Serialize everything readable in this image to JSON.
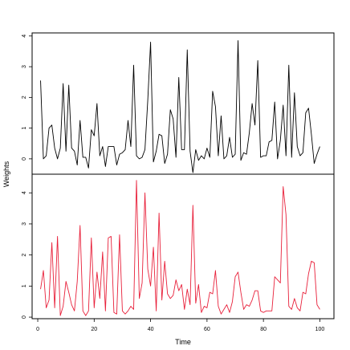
{
  "chart_data": {
    "type": "line",
    "xlabel": "Time",
    "ylabel": "Weights",
    "xlim": [
      -2,
      105
    ],
    "x_ticks": [
      0,
      20,
      40,
      60,
      80,
      100
    ],
    "x_tick_labels": [
      "0",
      "20",
      "40",
      "60",
      "80",
      "100"
    ],
    "grid": false,
    "legend": "none",
    "x": [
      1,
      2,
      3,
      4,
      5,
      6,
      7,
      8,
      9,
      10,
      11,
      12,
      13,
      14,
      15,
      16,
      17,
      18,
      19,
      20,
      21,
      22,
      23,
      24,
      25,
      26,
      27,
      28,
      29,
      30,
      31,
      32,
      33,
      34,
      35,
      36,
      37,
      38,
      39,
      40,
      41,
      42,
      43,
      44,
      45,
      46,
      47,
      48,
      49,
      50,
      51,
      52,
      53,
      54,
      55,
      56,
      57,
      58,
      59,
      60,
      61,
      62,
      63,
      64,
      65,
      66,
      67,
      68,
      69,
      70,
      71,
      72,
      73,
      74,
      75,
      76,
      77,
      78,
      79,
      80,
      81,
      82,
      83,
      84,
      85,
      86,
      87,
      88,
      89,
      90,
      91,
      92,
      93,
      94,
      95,
      96,
      97,
      98,
      99,
      100
    ],
    "panels": [
      {
        "name": "top",
        "color": "#000000",
        "ylim": [
          -0.5,
          4.1
        ],
        "y_ticks": [
          0,
          1,
          2,
          3,
          4
        ],
        "y_tick_labels": [
          "0",
          "1",
          "2",
          "3",
          "4"
        ],
        "values": [
          2.55,
          0.0,
          0.1,
          1.0,
          1.1,
          0.35,
          0.0,
          0.35,
          2.45,
          0.25,
          2.4,
          0.35,
          0.25,
          -0.2,
          1.25,
          0.05,
          0.05,
          -0.3,
          0.95,
          0.75,
          1.8,
          0.1,
          0.4,
          -0.25,
          0.4,
          0.4,
          0.4,
          -0.2,
          0.15,
          0.2,
          0.3,
          1.25,
          0.4,
          3.05,
          0.1,
          0.0,
          0.05,
          0.3,
          1.9,
          3.8,
          -0.1,
          0.25,
          0.8,
          0.75,
          -0.15,
          0.15,
          1.6,
          1.3,
          0.05,
          2.65,
          0.3,
          0.3,
          3.55,
          0.25,
          -0.45,
          0.3,
          -0.05,
          0.1,
          0.0,
          0.35,
          0.05,
          2.2,
          1.7,
          0.1,
          1.4,
          0.0,
          0.1,
          0.7,
          0.05,
          0.15,
          3.85,
          -0.05,
          0.2,
          0.15,
          0.85,
          1.8,
          1.1,
          3.2,
          0.05,
          0.1,
          0.1,
          0.55,
          0.6,
          1.85,
          0.0,
          0.6,
          1.75,
          0.1,
          3.05,
          0.05,
          2.15,
          0.4,
          0.1,
          0.2,
          1.5,
          1.65,
          0.8,
          -0.15,
          0.15,
          0.4
        ]
      },
      {
        "name": "bottom",
        "color": "#e8203a",
        "ylim": [
          -0.05,
          4.6
        ],
        "y_ticks": [
          0,
          1,
          2,
          3,
          4
        ],
        "y_tick_labels": [
          "0",
          "1",
          "2",
          "3",
          "4"
        ],
        "values": [
          0.9,
          1.5,
          0.3,
          0.55,
          2.4,
          0.3,
          2.6,
          0.05,
          0.35,
          1.15,
          0.8,
          0.4,
          0.2,
          1.15,
          2.95,
          0.2,
          0.05,
          0.2,
          2.55,
          0.3,
          1.45,
          0.6,
          2.1,
          0.2,
          2.55,
          2.6,
          0.15,
          0.1,
          2.65,
          0.2,
          0.1,
          0.2,
          0.35,
          0.25,
          4.4,
          0.6,
          1.1,
          4.0,
          1.55,
          1.0,
          2.25,
          0.2,
          3.35,
          0.55,
          1.8,
          0.75,
          0.6,
          0.7,
          1.2,
          0.85,
          1.05,
          0.25,
          0.9,
          0.4,
          3.6,
          0.45,
          1.05,
          0.15,
          0.35,
          0.3,
          0.8,
          0.75,
          1.5,
          0.35,
          0.1,
          0.25,
          0.4,
          0.15,
          0.5,
          1.3,
          1.45,
          0.8,
          0.25,
          0.4,
          0.35,
          0.55,
          0.85,
          0.85,
          0.2,
          0.15,
          0.2,
          0.2,
          0.2,
          1.3,
          1.2,
          1.1,
          4.2,
          3.3,
          0.35,
          0.25,
          0.6,
          0.3,
          0.2,
          0.8,
          0.75,
          1.4,
          1.8,
          1.75,
          0.4,
          0.25
        ]
      }
    ]
  }
}
